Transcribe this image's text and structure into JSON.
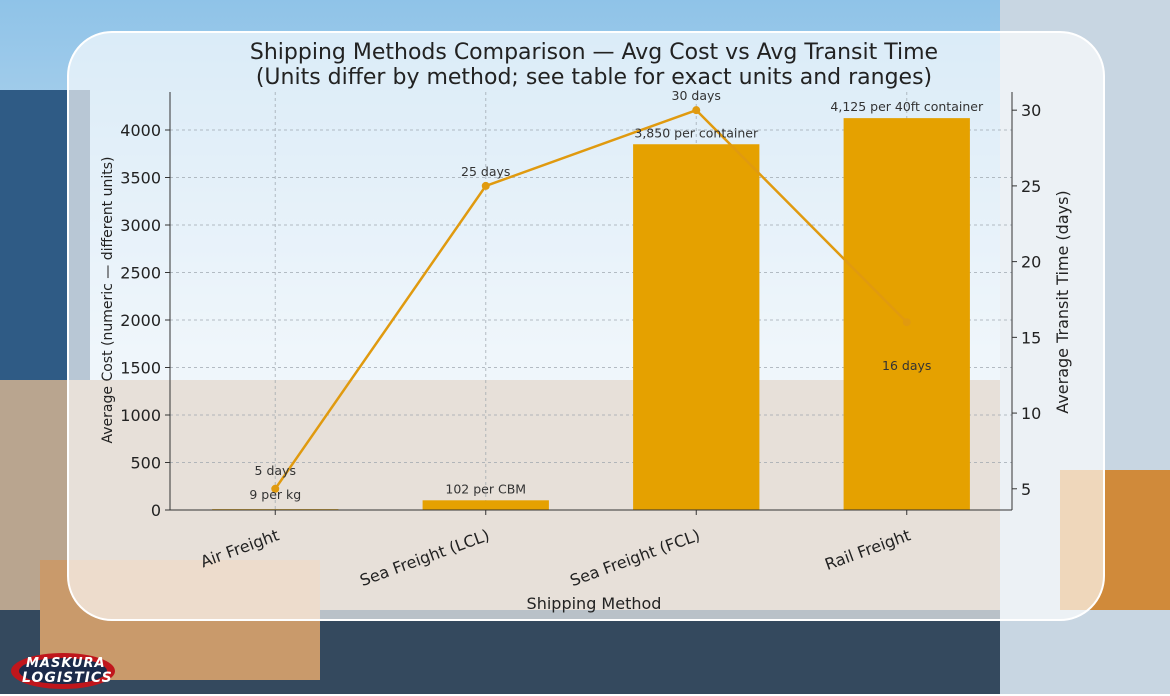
{
  "chart_data": {
    "type": "bar",
    "title": "Shipping Methods Comparison — Avg Cost vs Avg Transit Time",
    "subtitle": "(Units differ by method; see table for exact units and ranges)",
    "xlabel": "Shipping Method",
    "ylabel": "Average Cost (numeric — different units)",
    "y2label": "Average Transit Time (days)",
    "ylim": [
      0,
      4400
    ],
    "y2lim": [
      3.6,
      31.2
    ],
    "yticks": [
      0,
      500,
      1000,
      1500,
      2000,
      2500,
      3000,
      3500,
      4000
    ],
    "y2ticks": [
      5,
      10,
      15,
      20,
      25,
      30
    ],
    "categories": [
      "Air Freight",
      "Sea Freight (LCL)",
      "Sea Freight (FCL)",
      "Rail Freight"
    ],
    "series": [
      {
        "kind": "bar",
        "values": [
          9,
          102,
          3850,
          4125
        ],
        "labels": [
          "9 per kg",
          "102 per CBM",
          "3,850 per container",
          "4,125 per 40ft container"
        ],
        "color": "#E5A100"
      },
      {
        "kind": "line",
        "axis": "right",
        "values": [
          5,
          25,
          30,
          16
        ],
        "labels": [
          "5 days",
          "25 days",
          "30 days",
          "16 days"
        ],
        "color": "#E09A0F"
      }
    ],
    "grid": true
  },
  "logo": {
    "line1": "MASKURA",
    "line2": "LOGISTICS"
  }
}
